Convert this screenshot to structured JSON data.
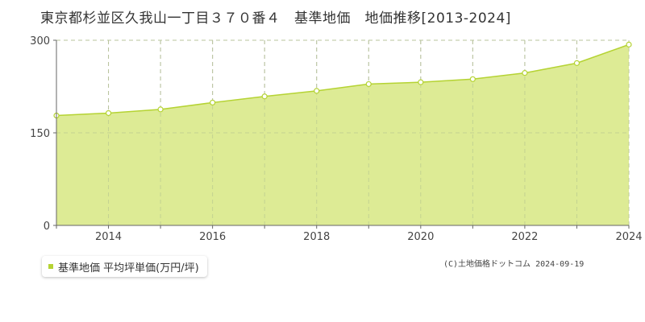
{
  "chart_data": {
    "type": "area",
    "title": "東京都杉並区久我山一丁目３７０番４　基準地価　地価推移[2013-2024]",
    "x": [
      2013,
      2014,
      2015,
      2016,
      2017,
      2018,
      2019,
      2020,
      2021,
      2022,
      2023,
      2024
    ],
    "series": [
      {
        "name": "基準地価 平均坪単価(万円/坪)",
        "values": [
          178,
          182,
          188,
          199,
          209,
          218,
          229,
          232,
          237,
          247,
          263,
          293
        ]
      }
    ],
    "ylim": [
      0,
      300
    ],
    "yticks": [
      "0",
      "150",
      "300"
    ],
    "xticks": [
      "2014",
      "2016",
      "2018",
      "2020",
      "2022",
      "2024"
    ],
    "xlim": [
      2013,
      2024
    ],
    "grid": true,
    "legend_placement": "bottom-left"
  },
  "colors": {
    "fill": "#ddeb95",
    "line": "#b5d333",
    "grid": "#bbbbbb"
  },
  "legend": {
    "label": "基準地価 平均坪単価(万円/坪)"
  },
  "credit": "(C)土地価格ドットコム 2024-09-19"
}
